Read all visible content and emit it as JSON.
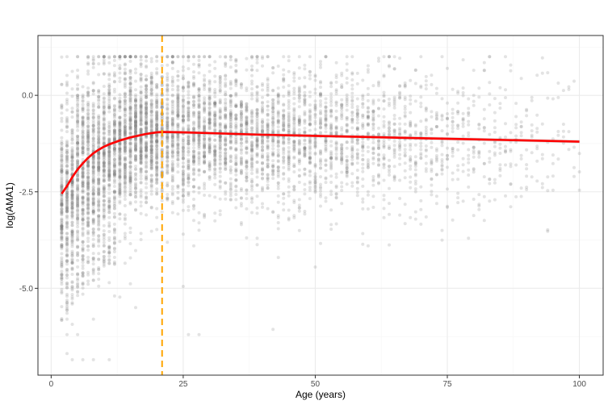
{
  "chart_data": {
    "type": "scatter",
    "title": "",
    "xlabel": "Age (years)",
    "ylabel": "log(AMA1)",
    "xlim": [
      -2.5,
      104.5
    ],
    "ylim": [
      -7.25,
      1.55
    ],
    "x_ticks": [
      0,
      25,
      50,
      75,
      100
    ],
    "x_tick_labels": [
      "0",
      "25",
      "50",
      "75",
      "100"
    ],
    "y_ticks": [
      0.0,
      -2.5,
      -5.0
    ],
    "y_tick_labels": [
      "0.0",
      "-2.5",
      "-5.0"
    ],
    "grid": true,
    "legend": "none",
    "colors": {
      "points": "#808080",
      "smooth": "#ff0000",
      "vline": "#ffa500",
      "grid_major": "#ebebeb",
      "grid_minor": "#f5f5f5",
      "panel_border": "#333333"
    },
    "scatter_summary": {
      "x_range": [
        2,
        100
      ],
      "y_range": [
        -6.9,
        1.0
      ],
      "density": "very dense for ages 2–20, thinning with age"
    },
    "smooth_line": {
      "x": [
        2,
        3,
        4,
        5,
        6,
        7,
        8,
        9,
        10,
        11,
        12,
        13,
        14,
        15,
        16,
        17,
        18,
        19,
        20,
        21,
        25,
        30,
        40,
        50,
        60,
        70,
        80,
        90,
        100
      ],
      "y": [
        -2.55,
        -2.35,
        -2.12,
        -1.92,
        -1.76,
        -1.62,
        -1.5,
        -1.41,
        -1.33,
        -1.27,
        -1.22,
        -1.17,
        -1.13,
        -1.09,
        -1.06,
        -1.03,
        -1.0,
        -0.98,
        -0.96,
        -0.95,
        -0.96,
        -0.98,
        -1.02,
        -1.05,
        -1.08,
        -1.11,
        -1.14,
        -1.17,
        -1.2
      ]
    },
    "vline_x": 21
  }
}
